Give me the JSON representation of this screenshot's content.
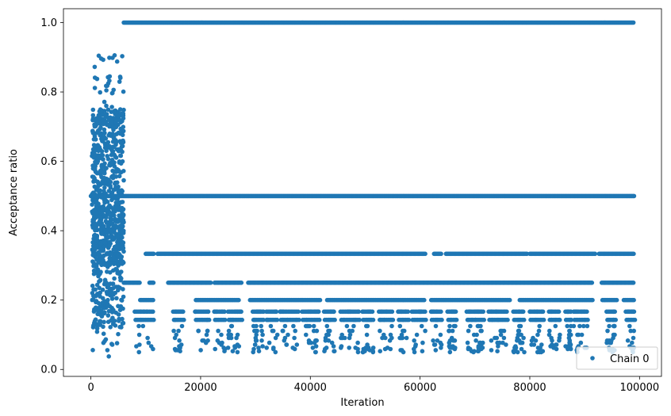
{
  "chart_data": {
    "type": "scatter",
    "title": "",
    "xlabel": "Iteration",
    "ylabel": "Acceptance ratio",
    "xlim": [
      -5000,
      104000
    ],
    "ylim": [
      -0.02,
      1.04
    ],
    "xticks": [
      0,
      20000,
      40000,
      60000,
      80000,
      100000
    ],
    "yticks": [
      0.0,
      0.2,
      0.4,
      0.6,
      0.8,
      1.0
    ],
    "xtick_labels": [
      "0",
      "20000",
      "40000",
      "60000",
      "80000",
      "100000"
    ],
    "ytick_labels": [
      "0.0",
      "0.2",
      "0.4",
      "0.6",
      "0.8",
      "1.0"
    ],
    "grid": false,
    "legend_position": "lower-right",
    "series": [
      {
        "name": "Chain 0",
        "color": "#1f77b4",
        "marker": "circle",
        "burn_in_end_iteration": 6000,
        "last_iteration": 99000,
        "burn_in_value_range": [
          0.03,
          0.91
        ],
        "discrete_levels_after_burn_in": [
          1.0,
          0.5,
          0.3333,
          0.25,
          0.2,
          0.1667,
          0.1429,
          0.125,
          0.1111,
          0.1,
          0.0909,
          0.0833,
          0.0769,
          0.0714,
          0.0667,
          0.0625,
          0.0588,
          0.0556,
          0.0526,
          0.05
        ],
        "low_level_clusters": [
          [
            8000,
            11500
          ],
          [
            15000,
            17000
          ],
          [
            19000,
            21500
          ],
          [
            22500,
            24500
          ],
          [
            25000,
            27500
          ],
          [
            29500,
            31500
          ],
          [
            32000,
            34000
          ],
          [
            34500,
            38000
          ],
          [
            38500,
            41500
          ],
          [
            42500,
            44500
          ],
          [
            45500,
            49000
          ],
          [
            49500,
            51500
          ],
          [
            52500,
            55000
          ],
          [
            56000,
            58000
          ],
          [
            58500,
            61000
          ],
          [
            62000,
            64000
          ],
          [
            65000,
            66500
          ],
          [
            68500,
            70000
          ],
          [
            70000,
            71500
          ],
          [
            72500,
            76000
          ],
          [
            77000,
            79000
          ],
          [
            80000,
            82500
          ],
          [
            83500,
            85500
          ],
          [
            86500,
            87500
          ],
          [
            88000,
            90500
          ],
          [
            94000,
            95500
          ],
          [
            97500,
            99000
          ]
        ],
        "level_gaps": {
          "0.3333": [
            [
              11500,
              12000
            ],
            [
              61000,
              62500
            ],
            [
              64000,
              64600
            ],
            [
              79500,
              80000
            ],
            [
              92000,
              92500
            ]
          ],
          "0.25": [
            [
              9000,
              10500
            ],
            [
              11500,
              14000
            ],
            [
              22000,
              22500
            ],
            [
              27500,
              28500
            ],
            [
              91500,
              93000
            ]
          ],
          "0.2": [
            [
              11500,
              19000
            ],
            [
              27000,
              29000
            ],
            [
              42000,
              43000
            ],
            [
              61000,
              62000
            ],
            [
              76500,
              78000
            ],
            [
              91500,
              93000
            ],
            [
              96000,
              97000
            ]
          ]
        }
      }
    ]
  }
}
